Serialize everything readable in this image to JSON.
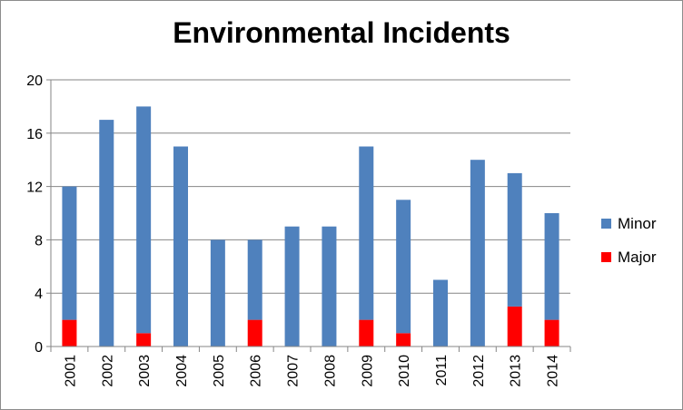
{
  "chart_data": {
    "type": "bar",
    "stacked": true,
    "title": "Environmental Incidents",
    "xlabel": "",
    "ylabel": "",
    "categories": [
      "2001",
      "2002",
      "2003",
      "2004",
      "2005",
      "2006",
      "2007",
      "2008",
      "2009",
      "2010",
      "2011",
      "2012",
      "2013",
      "2014"
    ],
    "series": [
      {
        "name": "Major",
        "color": "#ff0000",
        "values": [
          2,
          0,
          1,
          0,
          0,
          2,
          0,
          0,
          2,
          1,
          0,
          0,
          3,
          2
        ]
      },
      {
        "name": "Minor",
        "color": "#4f81bd",
        "values": [
          10,
          17,
          17,
          15,
          8,
          6,
          9,
          9,
          13,
          10,
          5,
          14,
          10,
          8
        ]
      }
    ],
    "ylim": [
      0,
      20
    ],
    "yticks": [
      0,
      4,
      8,
      12,
      16,
      20
    ],
    "grid": true,
    "legend_position": "right",
    "legend_order": [
      "Minor",
      "Major"
    ]
  }
}
